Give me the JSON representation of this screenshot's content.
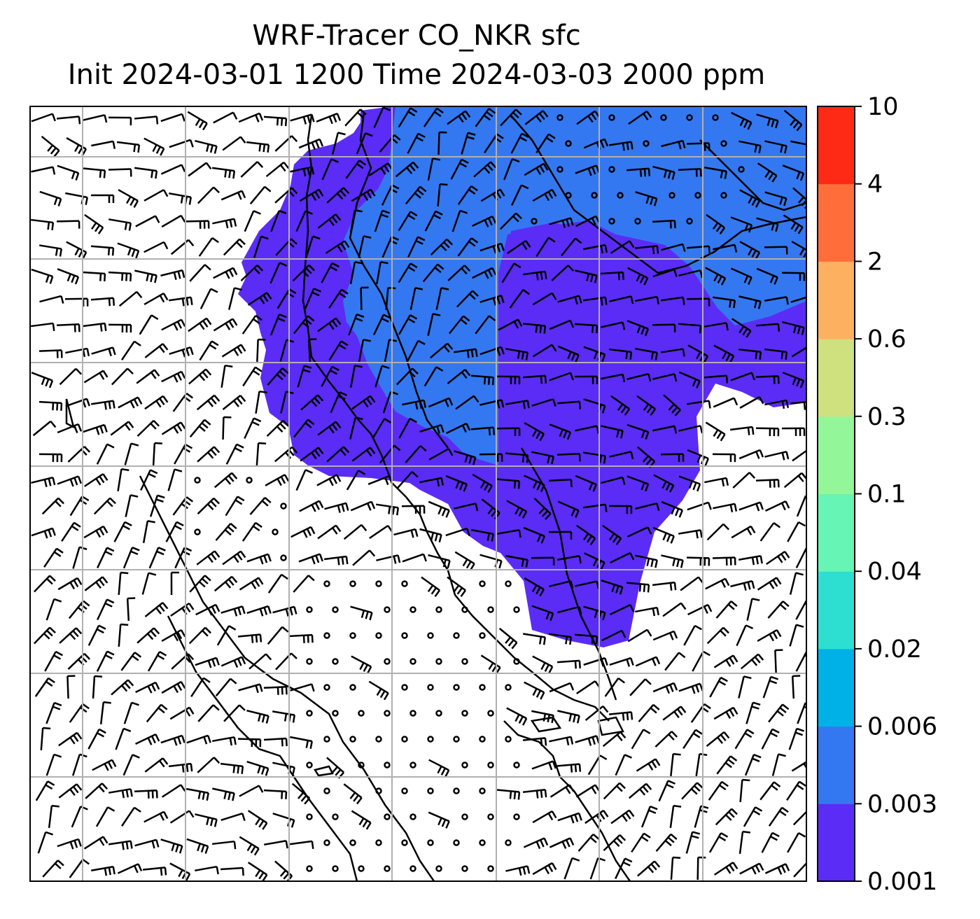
{
  "title": {
    "line1": "WRF-Tracer CO_NKR sfc",
    "line2": "Init 2024-03-01 1200 Time 2024-03-03 2000 ppm"
  },
  "map": {
    "variable": "CO_NKR surface tracer concentration",
    "units": "ppm",
    "overlays": [
      "coastlines",
      "national-borders",
      "lat-lon-gridlines",
      "wind-barbs"
    ],
    "background_color": "#ffffff",
    "gridline_color": "#b0b0b0"
  },
  "colorbar": {
    "ticks": [
      "0.001",
      "0.003",
      "0.006",
      "0.02",
      "0.04",
      "0.1",
      "0.3",
      "0.6",
      "2",
      "4",
      "10"
    ],
    "colors": [
      "#5b2cf6",
      "#3478f1",
      "#00b1e8",
      "#2ddfd0",
      "#66f5b4",
      "#93f79a",
      "#cfe07f",
      "#feb061",
      "#ff6e3a",
      "#ff2a15"
    ]
  }
}
